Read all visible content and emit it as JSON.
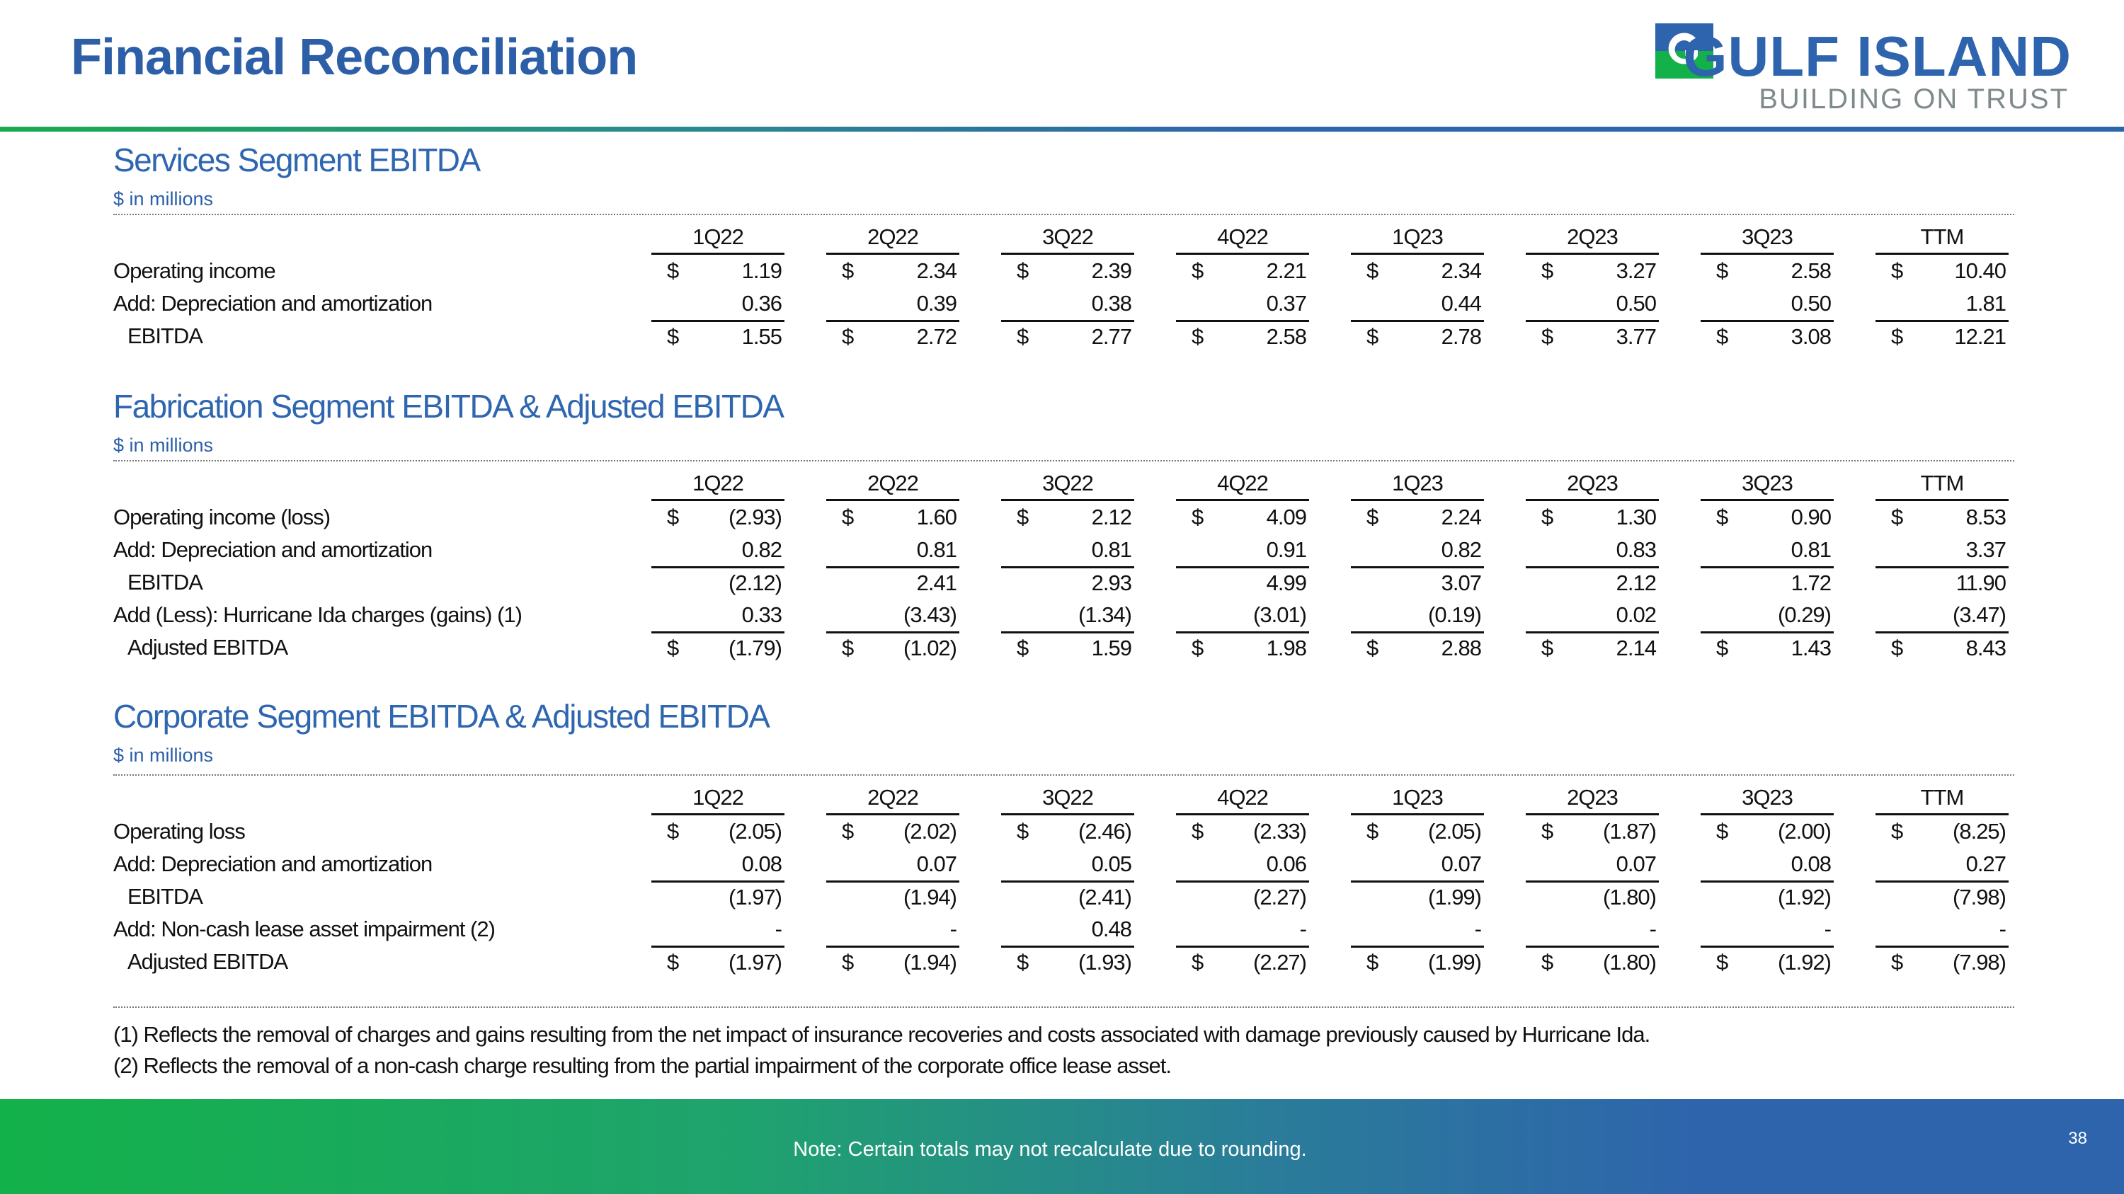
{
  "title": "Financial Reconciliation",
  "logo": {
    "name": "GULF ISLAND",
    "tagline": "BUILDING ON TRUST",
    "colors": {
      "blue": "#2E63AE",
      "green": "#13B14A"
    }
  },
  "columns": [
    "1Q22",
    "2Q22",
    "3Q22",
    "4Q22",
    "1Q23",
    "2Q23",
    "3Q23",
    "TTM"
  ],
  "sections": [
    {
      "title": "Services Segment EBITDA",
      "subtitle": "$ in millions",
      "rows": [
        {
          "label": "Operating income",
          "dollar": true,
          "values": [
            "1.19",
            "2.34",
            "2.39",
            "2.21",
            "2.34",
            "3.27",
            "2.58",
            "10.40"
          ]
        },
        {
          "label": "Add: Depreciation and amortization",
          "dollar": false,
          "values": [
            "0.36",
            "0.39",
            "0.38",
            "0.37",
            "0.44",
            "0.50",
            "0.50",
            "1.81"
          ]
        },
        {
          "label": "EBITDA",
          "dollar": true,
          "values": [
            "1.55",
            "2.72",
            "2.77",
            "2.58",
            "2.78",
            "3.77",
            "3.08",
            "12.21"
          ]
        }
      ]
    },
    {
      "title": "Fabrication Segment EBITDA & Adjusted EBITDA",
      "subtitle": "$ in millions",
      "rows": [
        {
          "label": "Operating income (loss)",
          "dollar": true,
          "values": [
            "(2.93)",
            "1.60",
            "2.12",
            "4.09",
            "2.24",
            "1.30",
            "0.90",
            "8.53"
          ]
        },
        {
          "label": "Add: Depreciation and amortization",
          "dollar": false,
          "values": [
            "0.82",
            "0.81",
            "0.81",
            "0.91",
            "0.82",
            "0.83",
            "0.81",
            "3.37"
          ]
        },
        {
          "label": "EBITDA",
          "dollar": false,
          "values": [
            "(2.12)",
            "2.41",
            "2.93",
            "4.99",
            "3.07",
            "2.12",
            "1.72",
            "11.90"
          ]
        },
        {
          "label": "Add (Less): Hurricane Ida charges (gains) (1)",
          "dollar": false,
          "values": [
            "0.33",
            "(3.43)",
            "(1.34)",
            "(3.01)",
            "(0.19)",
            "0.02",
            "(0.29)",
            "(3.47)"
          ]
        },
        {
          "label": "Adjusted EBITDA",
          "dollar": true,
          "values": [
            "(1.79)",
            "(1.02)",
            "1.59",
            "1.98",
            "2.88",
            "2.14",
            "1.43",
            "8.43"
          ]
        }
      ]
    },
    {
      "title": "Corporate Segment EBITDA & Adjusted EBITDA",
      "subtitle": "$ in millions",
      "rows": [
        {
          "label": "Operating loss",
          "dollar": true,
          "values": [
            "(2.05)",
            "(2.02)",
            "(2.46)",
            "(2.33)",
            "(2.05)",
            "(1.87)",
            "(2.00)",
            "(8.25)"
          ]
        },
        {
          "label": "Add: Depreciation and amortization",
          "dollar": false,
          "values": [
            "0.08",
            "0.07",
            "0.05",
            "0.06",
            "0.07",
            "0.07",
            "0.08",
            "0.27"
          ]
        },
        {
          "label": "EBITDA",
          "dollar": false,
          "values": [
            "(1.97)",
            "(1.94)",
            "(2.41)",
            "(2.27)",
            "(1.99)",
            "(1.80)",
            "(1.92)",
            "(7.98)"
          ]
        },
        {
          "label": "Add: Non-cash lease asset impairment (2)",
          "dollar": false,
          "values": [
            "-",
            "-",
            "0.48",
            "-",
            "-",
            "-",
            "-",
            "-"
          ]
        },
        {
          "label": "Adjusted EBITDA",
          "dollar": true,
          "values": [
            "(1.97)",
            "(1.94)",
            "(1.93)",
            "(2.27)",
            "(1.99)",
            "(1.80)",
            "(1.92)",
            "(7.98)"
          ]
        }
      ]
    }
  ],
  "currency_symbol": "$",
  "footnotes": [
    "(1) Reflects the removal of charges and gains resulting from the net impact of insurance recoveries and costs associated with damage previously caused by Hurricane Ida.",
    "(2) Reflects the removal of a non-cash charge resulting from the partial impairment of the corporate office lease asset."
  ],
  "footer": {
    "note": "Note: Certain totals may not recalculate due to rounding.",
    "page_number": "38"
  }
}
